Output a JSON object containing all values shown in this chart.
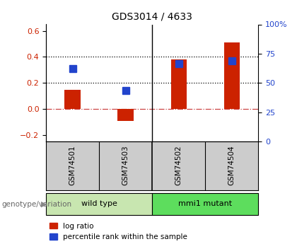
{
  "title": "GDS3014 / 4633",
  "samples": [
    "GSM74501",
    "GSM74503",
    "GSM74502",
    "GSM74504"
  ],
  "log_ratio": [
    0.15,
    -0.09,
    0.38,
    0.51
  ],
  "percentile_rank": [
    0.31,
    0.14,
    0.35,
    0.37
  ],
  "groups": [
    {
      "label": "wild type",
      "samples": [
        0,
        1
      ],
      "color": "#c8e6b0"
    },
    {
      "label": "mmi1 mutant",
      "samples": [
        2,
        3
      ],
      "color": "#5ddd5d"
    }
  ],
  "bar_color_red": "#cc2200",
  "bar_color_blue": "#2244cc",
  "ylim_left": [
    -0.25,
    0.65
  ],
  "ylim_right": [
    0,
    100
  ],
  "yticks_left": [
    -0.2,
    0.0,
    0.2,
    0.4,
    0.6
  ],
  "yticks_right": [
    0,
    25,
    50,
    75,
    100
  ],
  "ytick_labels_right": [
    "0",
    "25",
    "50",
    "75",
    "100%"
  ],
  "hlines_dotted": [
    0.2,
    0.4
  ],
  "hline_zero_color": "#cc4444",
  "background_color": "#ffffff",
  "sample_bg_color": "#cccccc",
  "bar_width": 0.3,
  "blue_marker_size": 7,
  "group_label": "genotype/variation",
  "legend_items": [
    "log ratio",
    "percentile rank within the sample"
  ]
}
